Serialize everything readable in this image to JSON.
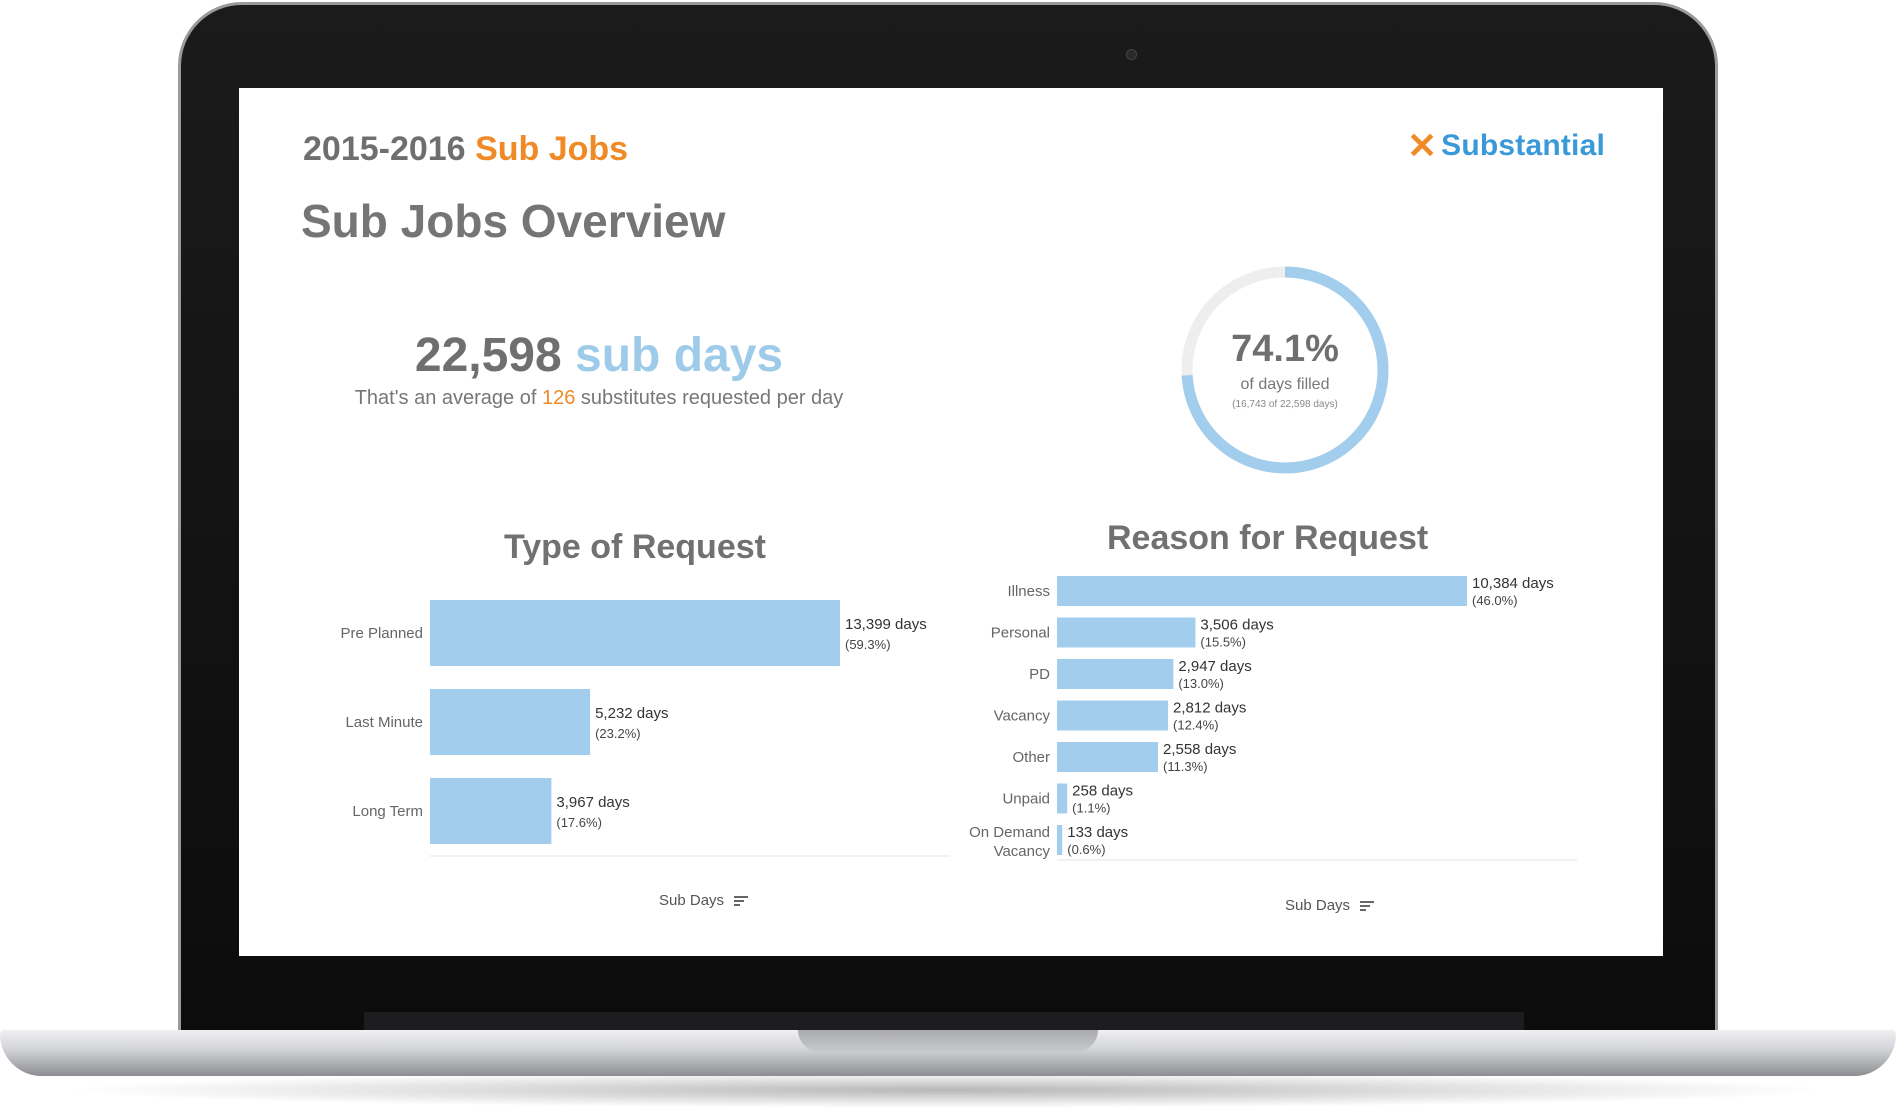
{
  "header": {
    "year": "2015-2016",
    "section": "Sub Jobs",
    "logo_text": "Substantial",
    "page_title": "Sub Jobs Overview"
  },
  "summary": {
    "total_days": "22,598",
    "unit": "sub days",
    "avg_prefix": "That's an average of",
    "avg_value": "126",
    "avg_suffix": "substitutes requested per day"
  },
  "fill": {
    "percent_text": "74.1%",
    "percent": 74.1,
    "label": "of days filled",
    "note": "(16,743 of 22,598 days)"
  },
  "colors": {
    "bar": "#a3cdec",
    "accent": "#ef8a26",
    "brand_blue": "#3a9ad9",
    "ring_track": "#eeeeee"
  },
  "chart_data": [
    {
      "type": "bar",
      "title": "Type of Request",
      "footer": "Sub Days",
      "categories": [
        "Pre Planned",
        "Last Minute",
        "Long Term"
      ],
      "values": [
        13399,
        5232,
        3967
      ],
      "labels": [
        "13,399 days",
        "5,232 days",
        "3,967 days"
      ],
      "percents": [
        "(59.3%)",
        "(23.2%)",
        "(17.6%)"
      ]
    },
    {
      "type": "bar",
      "title": "Reason for Request",
      "footer": "Sub Days",
      "categories": [
        "Illness",
        "Personal",
        "PD",
        "Vacancy",
        "Other",
        "Unpaid",
        "On Demand Vacancy"
      ],
      "values": [
        10384,
        3506,
        2947,
        2812,
        2558,
        258,
        133
      ],
      "labels": [
        "10,384 days",
        "3,506 days",
        "2,947 days",
        "2,812 days",
        "2,558 days",
        "258 days",
        "133 days"
      ],
      "percents": [
        "(46.0%)",
        "(15.5%)",
        "(13.0%)",
        "(12.4%)",
        "(11.3%)",
        "(1.1%)",
        "(0.6%)"
      ]
    }
  ]
}
